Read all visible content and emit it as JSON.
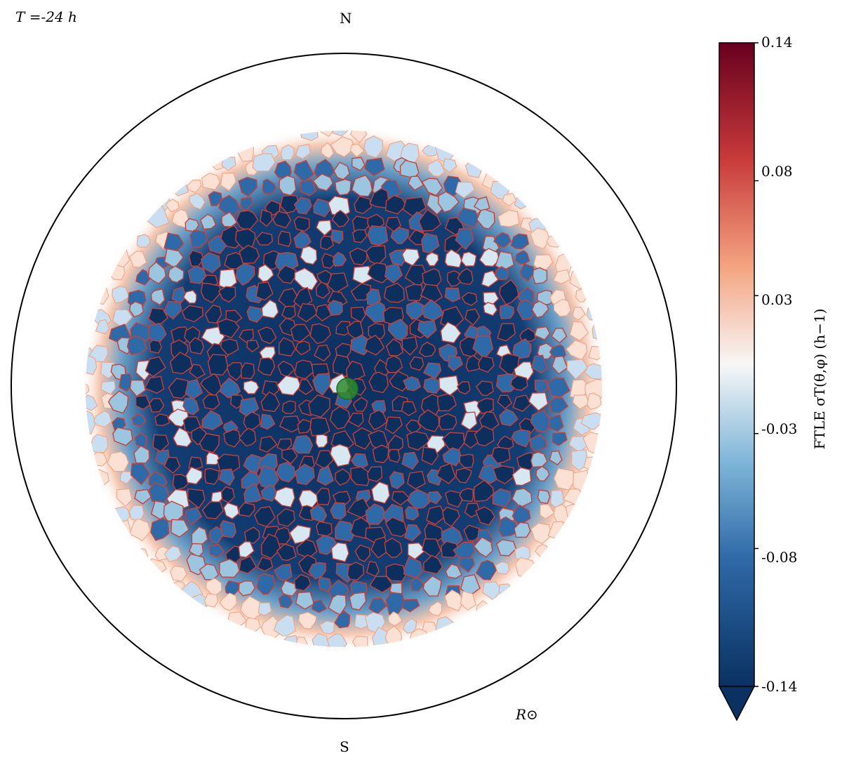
{
  "header": {
    "time_label": "T =-24 h"
  },
  "orientation": {
    "north": "N",
    "south": "S",
    "radius": "R⊙"
  },
  "colorbar": {
    "label": "FTLE σT(θ,φ) (h−1)",
    "ticks": [
      "0.14",
      "0.08",
      "0.03",
      "-0.03",
      "-0.08",
      "-0.14"
    ],
    "colors": {
      "low": "#0a3161",
      "mid_low": "#3d87c0",
      "light_low": "#cfe3ef",
      "mid": "#f7f7f7",
      "light_high": "#f6c3a8",
      "mid_high": "#d6604d",
      "high": "#67001f"
    }
  },
  "chart_data": {
    "type": "heatmap",
    "title": "",
    "xlabel": "",
    "ylabel": "",
    "colorbar_range": [
      -0.14,
      0.14
    ],
    "colorbar_ticks": [
      0.14,
      0.08,
      0.03,
      -0.03,
      -0.08,
      -0.14
    ],
    "colorbar_extend": "min",
    "projection": "orthographic solar disk",
    "marker": {
      "color": "#2e8b2e",
      "position": "disk center"
    }
  }
}
